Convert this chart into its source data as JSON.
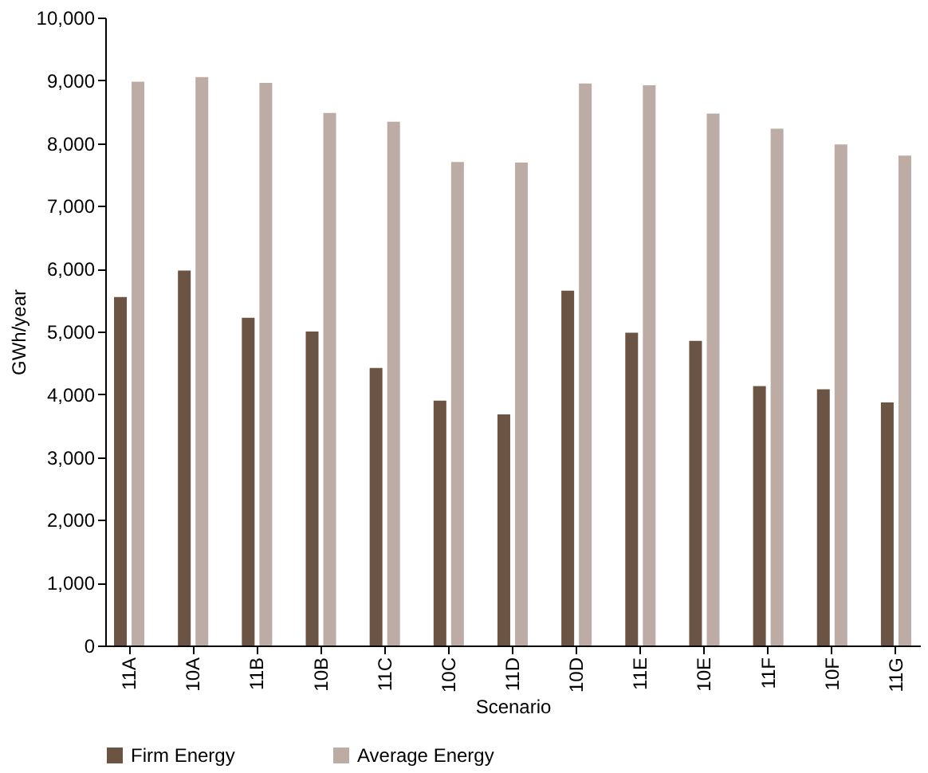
{
  "chart_data": {
    "type": "bar",
    "xlabel": "Scenario",
    "ylabel": "GWh/year",
    "categories": [
      "11A",
      "10A",
      "11B",
      "10B",
      "11C",
      "10C",
      "11D",
      "10D",
      "11E",
      "10E",
      "11F",
      "10F",
      "11G"
    ],
    "series": [
      {
        "name": "Firm Energy",
        "color": "#6b5444",
        "values": [
          5550,
          5970,
          5220,
          5000,
          4420,
          3900,
          3680,
          5650,
          4980,
          4850,
          4130,
          4080,
          3870
        ]
      },
      {
        "name": "Average Energy",
        "color": "#bcaca4",
        "values": [
          8980,
          9050,
          8960,
          8480,
          8340,
          7700,
          7690,
          8950,
          8920,
          8470,
          8230,
          7980,
          7800
        ]
      }
    ],
    "ylim": [
      0,
      10000
    ],
    "yticks": [
      {
        "value": 0,
        "label": "0"
      },
      {
        "value": 1000,
        "label": "1,000"
      },
      {
        "value": 2000,
        "label": "2,000"
      },
      {
        "value": 3000,
        "label": "3,000"
      },
      {
        "value": 4000,
        "label": "4,000"
      },
      {
        "value": 5000,
        "label": "5,000"
      },
      {
        "value": 6000,
        "label": "6,000"
      },
      {
        "value": 7000,
        "label": "7,000"
      },
      {
        "value": 8000,
        "label": "8,000"
      },
      {
        "value": 9000,
        "label": "9,000"
      },
      {
        "value": 10000,
        "label": "10,000"
      }
    ],
    "grid": false,
    "legend": "bottom"
  }
}
